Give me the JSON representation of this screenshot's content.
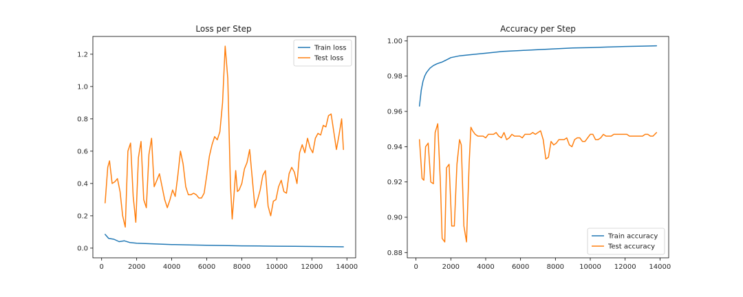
{
  "chart_data": [
    {
      "type": "line",
      "title": "Loss per Step",
      "xlabel": "",
      "ylabel": "",
      "xlim": [
        -500,
        14500
      ],
      "ylim": [
        -0.06,
        1.31
      ],
      "xticks": [
        0,
        2000,
        4000,
        6000,
        8000,
        10000,
        12000,
        14000
      ],
      "yticks": [
        0.0,
        0.2,
        0.4,
        0.6,
        0.8,
        1.0,
        1.2
      ],
      "xtick_labels": [
        "0",
        "2000",
        "4000",
        "6000",
        "8000",
        "10000",
        "12000",
        "14000"
      ],
      "ytick_labels": [
        "0.0",
        "0.2",
        "0.4",
        "0.6",
        "0.8",
        "1.0",
        "1.2"
      ],
      "grid": false,
      "legend_position": "top-right",
      "series": [
        {
          "name": "Train loss",
          "color": "#1f77b4",
          "x": [
            200,
            400,
            700,
            1000,
            1300,
            1600,
            2000,
            3000,
            4000,
            5000,
            6000,
            7000,
            8000,
            9000,
            10000,
            11000,
            12000,
            13000,
            13800
          ],
          "y": [
            0.085,
            0.06,
            0.055,
            0.04,
            0.045,
            0.035,
            0.03,
            0.026,
            0.022,
            0.02,
            0.018,
            0.016,
            0.014,
            0.013,
            0.012,
            0.011,
            0.01,
            0.009,
            0.008
          ]
        },
        {
          "name": "Test loss",
          "color": "#ff7f0e",
          "x": [
            200,
            350,
            450,
            600,
            750,
            900,
            1050,
            1200,
            1350,
            1500,
            1650,
            1800,
            1950,
            2100,
            2250,
            2400,
            2550,
            2700,
            2850,
            3000,
            3150,
            3300,
            3450,
            3600,
            3750,
            3900,
            4050,
            4200,
            4350,
            4500,
            4650,
            4800,
            4950,
            5100,
            5250,
            5400,
            5550,
            5700,
            5850,
            6000,
            6150,
            6300,
            6450,
            6600,
            6750,
            6900,
            7050,
            7200,
            7350,
            7450,
            7550,
            7650,
            7750,
            7850,
            8000,
            8150,
            8300,
            8450,
            8600,
            8750,
            8900,
            9050,
            9200,
            9350,
            9500,
            9650,
            9800,
            9950,
            10100,
            10250,
            10400,
            10550,
            10700,
            10850,
            11000,
            11150,
            11300,
            11450,
            11600,
            11750,
            11900,
            12050,
            12200,
            12350,
            12500,
            12650,
            12800,
            12950,
            13100,
            13250,
            13400,
            13550,
            13700,
            13800
          ],
          "y": [
            0.28,
            0.5,
            0.54,
            0.4,
            0.41,
            0.43,
            0.35,
            0.2,
            0.13,
            0.6,
            0.65,
            0.32,
            0.16,
            0.56,
            0.66,
            0.3,
            0.25,
            0.58,
            0.68,
            0.38,
            0.42,
            0.46,
            0.38,
            0.3,
            0.25,
            0.3,
            0.36,
            0.32,
            0.45,
            0.6,
            0.52,
            0.38,
            0.33,
            0.33,
            0.34,
            0.33,
            0.31,
            0.31,
            0.34,
            0.45,
            0.57,
            0.64,
            0.69,
            0.67,
            0.72,
            0.9,
            1.25,
            1.05,
            0.4,
            0.18,
            0.32,
            0.48,
            0.35,
            0.36,
            0.4,
            0.49,
            0.53,
            0.61,
            0.43,
            0.25,
            0.3,
            0.36,
            0.45,
            0.48,
            0.26,
            0.2,
            0.29,
            0.3,
            0.38,
            0.42,
            0.35,
            0.34,
            0.46,
            0.5,
            0.47,
            0.4,
            0.59,
            0.64,
            0.59,
            0.68,
            0.62,
            0.59,
            0.68,
            0.71,
            0.7,
            0.76,
            0.75,
            0.82,
            0.83,
            0.72,
            0.61,
            0.7,
            0.8,
            0.61
          ]
        }
      ]
    },
    {
      "type": "line",
      "title": "Accuracy per Step",
      "xlabel": "",
      "ylabel": "",
      "xlim": [
        -500,
        14500
      ],
      "ylim": [
        0.877,
        1.0025
      ],
      "xticks": [
        0,
        2000,
        4000,
        6000,
        8000,
        10000,
        12000,
        14000
      ],
      "yticks": [
        0.88,
        0.9,
        0.92,
        0.94,
        0.96,
        0.98,
        1.0
      ],
      "xtick_labels": [
        "0",
        "2000",
        "4000",
        "6000",
        "8000",
        "10000",
        "12000",
        "14000"
      ],
      "ytick_labels": [
        "0.88",
        "0.90",
        "0.92",
        "0.94",
        "0.96",
        "0.98",
        "1.00"
      ],
      "grid": false,
      "legend_position": "bottom-right",
      "series": [
        {
          "name": "Train accuracy",
          "color": "#1f77b4",
          "x": [
            200,
            300,
            400,
            500,
            600,
            800,
            1000,
            1200,
            1500,
            1800,
            2000,
            2500,
            3000,
            4000,
            5000,
            6000,
            7000,
            8000,
            9000,
            10000,
            11000,
            12000,
            13000,
            13800
          ],
          "y": [
            0.963,
            0.972,
            0.977,
            0.98,
            0.982,
            0.9845,
            0.986,
            0.987,
            0.988,
            0.9895,
            0.9905,
            0.9915,
            0.992,
            0.993,
            0.994,
            0.9945,
            0.995,
            0.9955,
            0.996,
            0.9962,
            0.9965,
            0.9968,
            0.997,
            0.9972
          ]
        },
        {
          "name": "Test accuracy",
          "color": "#ff7f0e",
          "x": [
            200,
            350,
            450,
            550,
            700,
            850,
            1000,
            1100,
            1250,
            1400,
            1500,
            1650,
            1750,
            1900,
            2050,
            2200,
            2350,
            2500,
            2600,
            2750,
            2900,
            3050,
            3150,
            3250,
            3400,
            3550,
            3700,
            3850,
            4000,
            4150,
            4300,
            4450,
            4600,
            4750,
            4900,
            5050,
            5200,
            5350,
            5500,
            5650,
            5800,
            5950,
            6100,
            6250,
            6400,
            6550,
            6700,
            6850,
            7000,
            7150,
            7300,
            7450,
            7600,
            7750,
            7900,
            8050,
            8200,
            8350,
            8500,
            8650,
            8800,
            8950,
            9100,
            9250,
            9400,
            9550,
            9700,
            9850,
            10000,
            10150,
            10300,
            10450,
            10600,
            10750,
            10900,
            11050,
            11200,
            11350,
            11500,
            11650,
            11800,
            11950,
            12100,
            12250,
            12400,
            12550,
            12700,
            12850,
            13000,
            13150,
            13300,
            13450,
            13600,
            13800
          ],
          "y": [
            0.944,
            0.922,
            0.921,
            0.94,
            0.942,
            0.92,
            0.919,
            0.948,
            0.953,
            0.92,
            0.888,
            0.886,
            0.928,
            0.93,
            0.895,
            0.895,
            0.93,
            0.944,
            0.941,
            0.895,
            0.886,
            0.93,
            0.951,
            0.949,
            0.947,
            0.946,
            0.946,
            0.946,
            0.945,
            0.947,
            0.947,
            0.947,
            0.948,
            0.946,
            0.945,
            0.948,
            0.944,
            0.945,
            0.947,
            0.946,
            0.946,
            0.946,
            0.945,
            0.947,
            0.947,
            0.947,
            0.948,
            0.947,
            0.948,
            0.949,
            0.944,
            0.933,
            0.934,
            0.943,
            0.941,
            0.942,
            0.944,
            0.944,
            0.944,
            0.945,
            0.941,
            0.94,
            0.944,
            0.945,
            0.945,
            0.943,
            0.943,
            0.945,
            0.947,
            0.947,
            0.944,
            0.944,
            0.945,
            0.947,
            0.946,
            0.946,
            0.946,
            0.947,
            0.947,
            0.947,
            0.947,
            0.947,
            0.947,
            0.946,
            0.946,
            0.946,
            0.946,
            0.946,
            0.946,
            0.947,
            0.947,
            0.946,
            0.946,
            0.948
          ]
        }
      ]
    }
  ]
}
